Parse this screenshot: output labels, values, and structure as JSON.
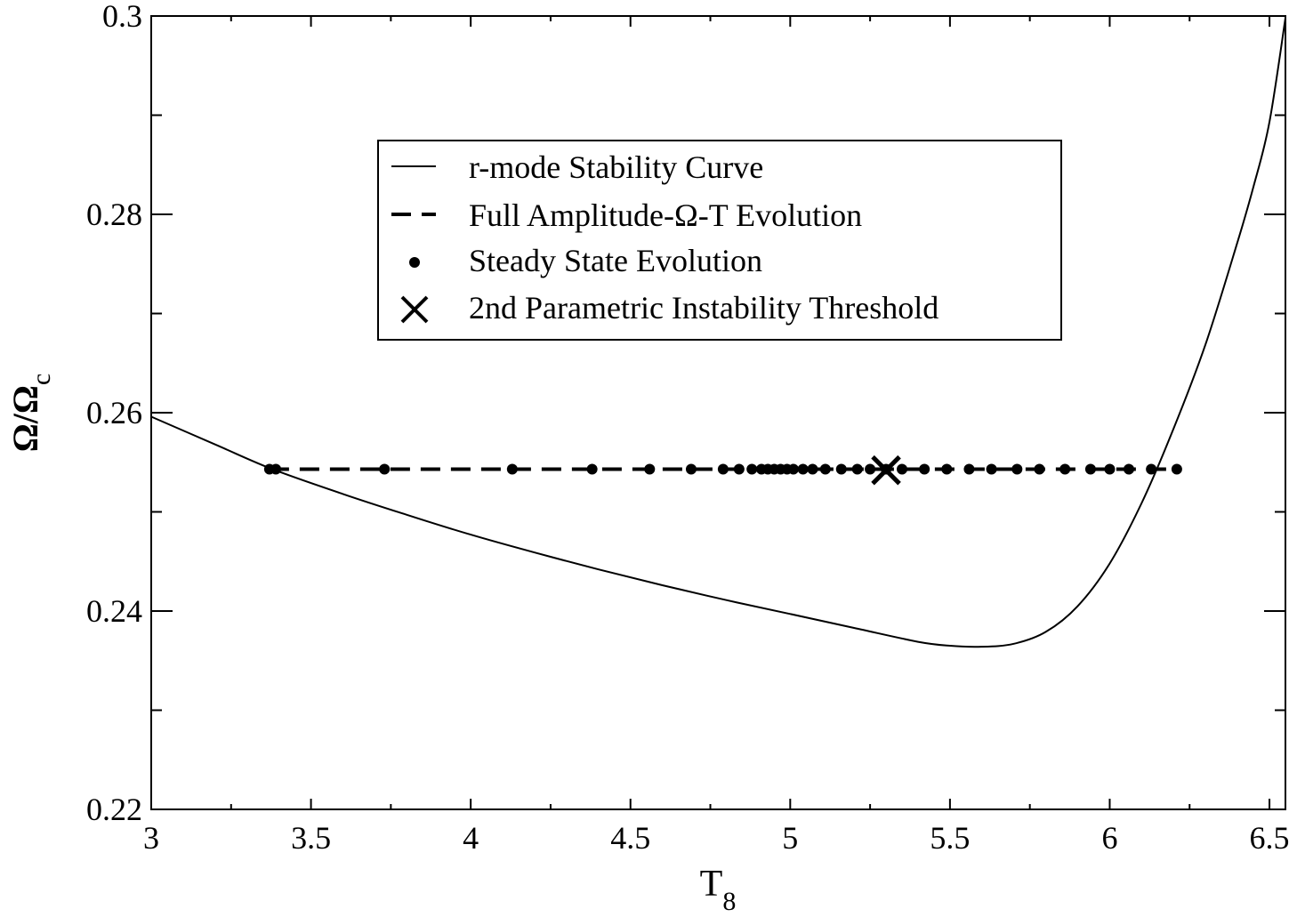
{
  "chart_data": {
    "type": "line",
    "xlabel": {
      "main": "T",
      "sub": "8"
    },
    "ylabel": {
      "main": "Ω/Ω",
      "sub": "c"
    },
    "xlim": [
      3,
      6.55
    ],
    "ylim": [
      0.22,
      0.3
    ],
    "x_ticks": [
      3,
      3.5,
      4,
      4.5,
      5,
      5.5,
      6,
      6.5
    ],
    "x_tick_labels": [
      "3",
      "3.5",
      "4",
      "4.5",
      "5",
      "5.5",
      "6",
      "6.5"
    ],
    "y_ticks": [
      0.22,
      0.24,
      0.26,
      0.28,
      0.3
    ],
    "y_tick_labels": [
      "0.22",
      "0.24",
      "0.26",
      "0.28",
      "0.3"
    ],
    "legend_placement": "upper-center",
    "series": [
      {
        "name": "r-mode Stability Curve",
        "style": "solid",
        "x": [
          3.0,
          3.2,
          3.38,
          3.6,
          3.8,
          4.0,
          4.2,
          4.4,
          4.6,
          4.8,
          5.0,
          5.2,
          5.4,
          5.5,
          5.6,
          5.7,
          5.8,
          5.9,
          6.0,
          6.1,
          6.2,
          6.3,
          6.4,
          6.45,
          6.5,
          6.55
        ],
        "y": [
          0.2596,
          0.2568,
          0.2543,
          0.2518,
          0.2497,
          0.2477,
          0.2459,
          0.2442,
          0.2426,
          0.2411,
          0.2397,
          0.2383,
          0.2369,
          0.2365,
          0.2364,
          0.2367,
          0.2379,
          0.2405,
          0.2448,
          0.2509,
          0.2584,
          0.2669,
          0.2772,
          0.2828,
          0.2893,
          0.2998
        ]
      },
      {
        "name": "Full Amplitude-Ω-T Evolution",
        "style": "dashed",
        "x": [
          3.37,
          6.21
        ],
        "y": [
          0.2543,
          0.2543
        ]
      },
      {
        "name": "Steady State Evolution",
        "style": "dots",
        "x": [
          3.37,
          3.39,
          3.73,
          4.13,
          4.38,
          4.56,
          4.69,
          4.79,
          4.84,
          4.88,
          4.91,
          4.93,
          4.95,
          4.97,
          4.99,
          5.01,
          5.04,
          5.07,
          5.11,
          5.16,
          5.21,
          5.25,
          5.3,
          5.35,
          5.42,
          5.49,
          5.56,
          5.63,
          5.71,
          5.78,
          5.86,
          5.94,
          6.0,
          6.06,
          6.13,
          6.21
        ],
        "y": [
          0.2543,
          0.2543,
          0.2543,
          0.2543,
          0.2543,
          0.2543,
          0.2543,
          0.2543,
          0.2543,
          0.2543,
          0.2543,
          0.2543,
          0.2543,
          0.2543,
          0.2543,
          0.2543,
          0.2543,
          0.2543,
          0.2543,
          0.2543,
          0.2543,
          0.2543,
          0.2543,
          0.2543,
          0.2543,
          0.2543,
          0.2543,
          0.2543,
          0.2543,
          0.2543,
          0.2543,
          0.2543,
          0.2543,
          0.2543,
          0.2543,
          0.2543
        ]
      },
      {
        "name": "2nd Parametric Instability Threshold",
        "style": "cross",
        "x": [
          5.3
        ],
        "y": [
          0.2542
        ]
      }
    ]
  }
}
